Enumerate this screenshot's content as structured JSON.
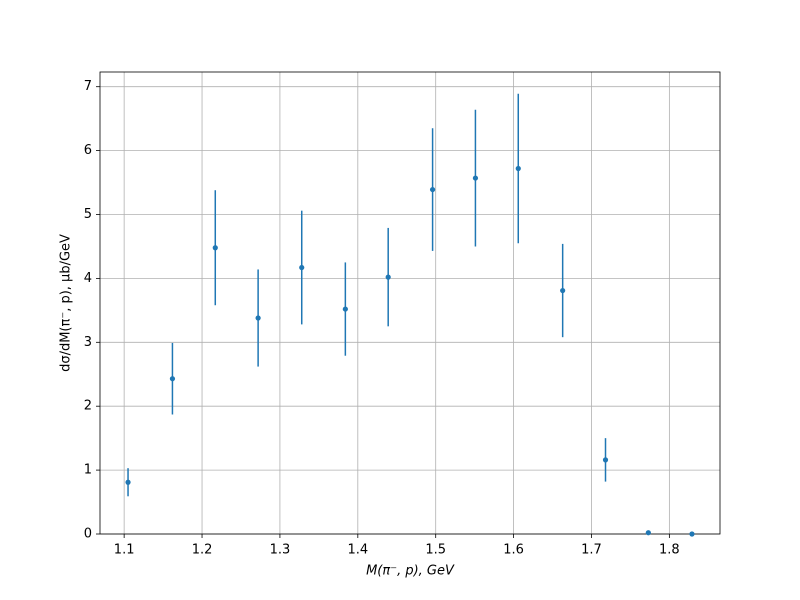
{
  "chart_data": {
    "type": "scatter",
    "x_label": "M(π⁻, p), GeV",
    "y_label": "dσ/dM(π⁻, p), μb/GeV",
    "x": [
      1.105,
      1.162,
      1.217,
      1.272,
      1.328,
      1.384,
      1.439,
      1.496,
      1.551,
      1.606,
      1.663,
      1.718,
      1.773,
      1.829
    ],
    "values": [
      0.81,
      2.43,
      4.48,
      3.38,
      4.17,
      3.52,
      4.02,
      5.39,
      5.57,
      5.72,
      3.81,
      1.16,
      0.02,
      0
    ],
    "errors": [
      0.22,
      0.56,
      0.9,
      0.76,
      0.89,
      0.73,
      0.77,
      0.96,
      1.07,
      1.17,
      0.73,
      0.34,
      0.01,
      0
    ],
    "color": "#1f77b4",
    "xlim": [
      1.069,
      1.865
    ],
    "ylim": [
      0,
      7.23
    ],
    "xticks": [
      1.1,
      1.2,
      1.3,
      1.4,
      1.5,
      1.6,
      1.7,
      1.8
    ],
    "yticks": [
      0,
      1,
      2,
      3,
      4,
      5,
      6,
      7
    ],
    "grid": true
  }
}
